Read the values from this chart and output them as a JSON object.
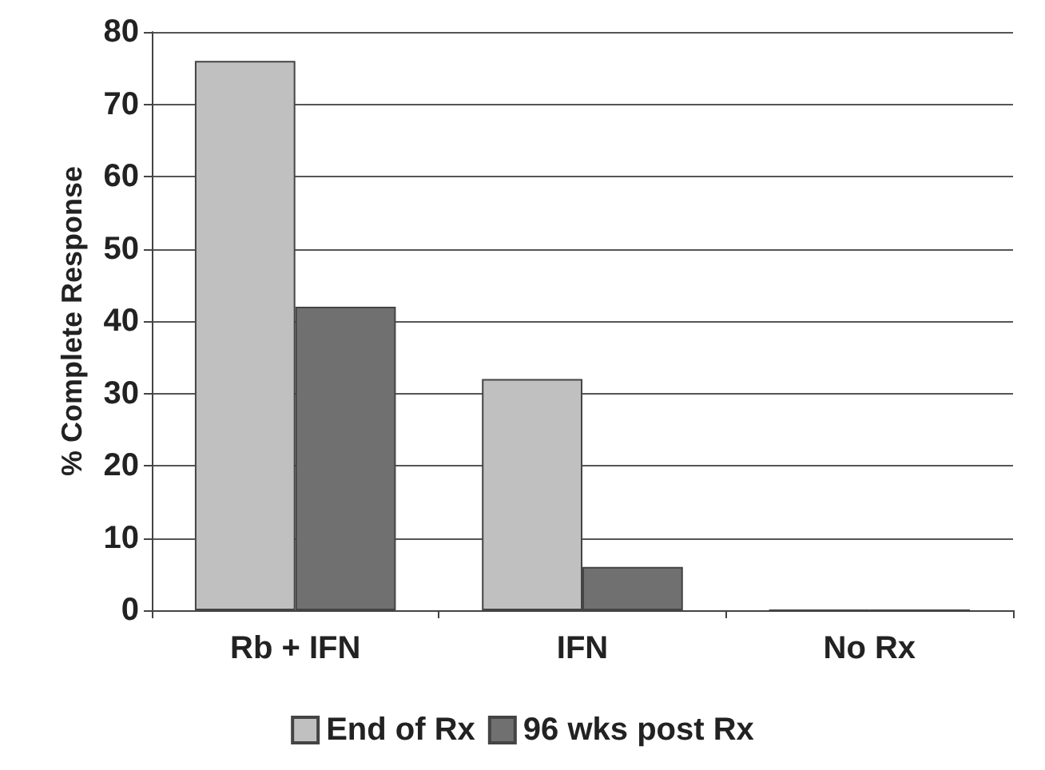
{
  "chart_data": {
    "type": "bar",
    "ylabel": "% Complete Response",
    "categories": [
      "Rb + IFN",
      "IFN",
      "No Rx"
    ],
    "series": [
      {
        "name": "End of Rx",
        "color": "#c0c0c0",
        "values": [
          76,
          32,
          0
        ]
      },
      {
        "name": "96 wks post Rx",
        "color": "#707070",
        "values": [
          42,
          6,
          0
        ]
      }
    ],
    "ylim": [
      0,
      80
    ],
    "yticks": [
      0,
      10,
      20,
      30,
      40,
      50,
      60,
      70,
      80
    ],
    "grid": "y",
    "legend": "bottom"
  }
}
